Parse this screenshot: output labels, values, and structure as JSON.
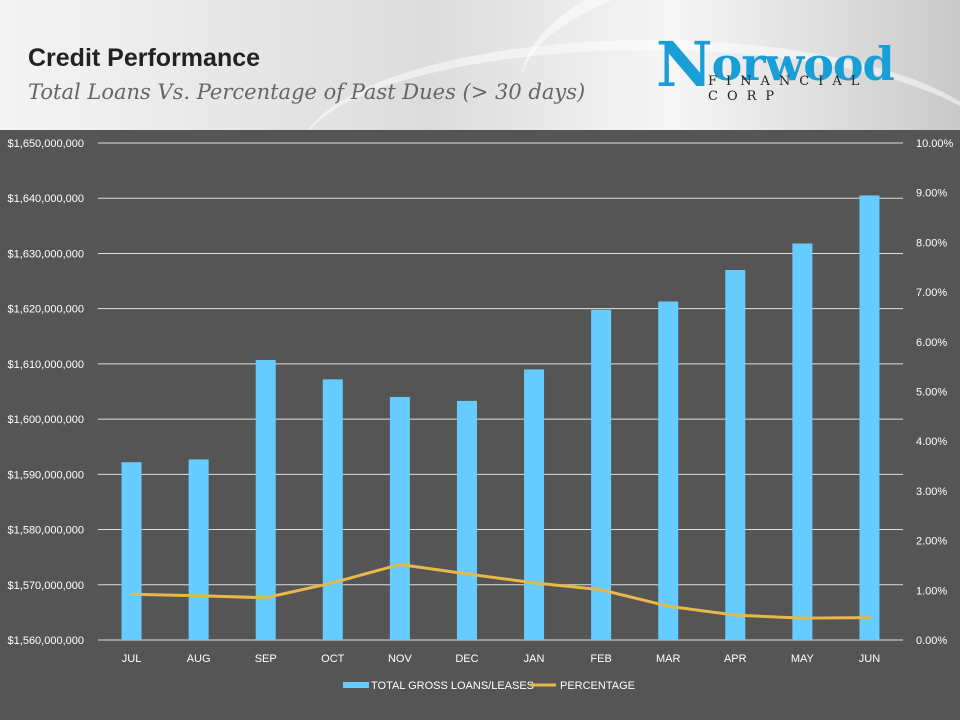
{
  "header": {
    "title": "Credit Performance",
    "subtitle": "Total Loans Vs. Percentage of Past Dues (> 30 days)",
    "logo_main_first": "N",
    "logo_main_rest": "orwood",
    "logo_sub": "FINANCIAL CORP"
  },
  "colors": {
    "bar": "#66ccff",
    "line": "#e6b84c",
    "plot_bg": "#555555",
    "grid": "#dddddd",
    "logo": "#1a9ed8"
  },
  "chart_data": {
    "type": "bar",
    "title": "Total Loans Vs. Percentage of Past Dues (> 30 days)",
    "categories": [
      "JUL",
      "AUG",
      "SEP",
      "OCT",
      "NOV",
      "DEC",
      "JAN",
      "FEB",
      "MAR",
      "APR",
      "MAY",
      "JUN"
    ],
    "series": [
      {
        "name": "TOTAL GROSS LOANS/LEASES",
        "type": "bar",
        "axis": "left",
        "values": [
          1592200000,
          1592700000,
          1610700000,
          1607200000,
          1604000000,
          1603300000,
          1609000000,
          1619800000,
          1621300000,
          1627000000,
          1631800000,
          1640500000
        ]
      },
      {
        "name": "PERCENTAGE",
        "type": "line",
        "axis": "right",
        "values": [
          0.92,
          0.89,
          0.85,
          1.15,
          1.52,
          1.33,
          1.15,
          1.01,
          0.68,
          0.5,
          0.44,
          0.45
        ]
      }
    ],
    "y_left": {
      "min": 1560000000,
      "max": 1650000000,
      "step": 10000000,
      "tick_labels": [
        "$1,560,000,000",
        "$1,570,000,000",
        "$1,580,000,000",
        "$1,590,000,000",
        "$1,600,000,000",
        "$1,610,000,000",
        "$1,620,000,000",
        "$1,630,000,000",
        "$1,640,000,000",
        "$1,650,000,000"
      ]
    },
    "y_right": {
      "min": 0,
      "max": 10,
      "step": 1,
      "tick_labels": [
        "0.00%",
        "1.00%",
        "2.00%",
        "3.00%",
        "4.00%",
        "5.00%",
        "6.00%",
        "7.00%",
        "8.00%",
        "9.00%",
        "10.00%"
      ]
    },
    "grid": true,
    "legend": {
      "position": "bottom",
      "entries": [
        "TOTAL GROSS LOANS/LEASES",
        "PERCENTAGE"
      ]
    }
  }
}
